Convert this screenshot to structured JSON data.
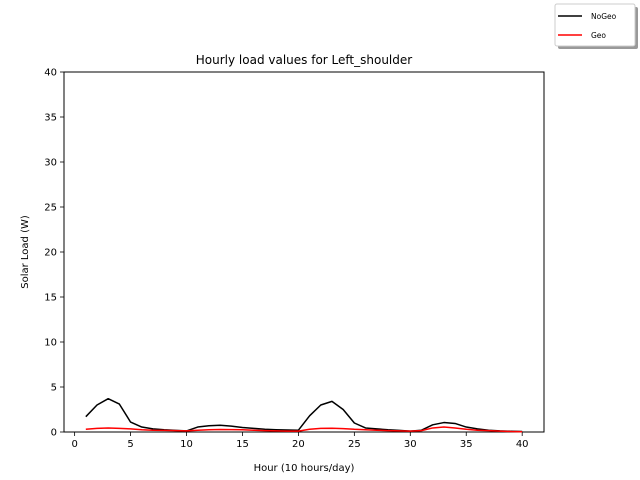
{
  "chart_data": {
    "type": "line",
    "title": "Hourly load values for Left_shoulder",
    "xlabel": "Hour (10 hours/day)",
    "ylabel": "Solar Load (W)",
    "xlim": [
      -0.95,
      41.95
    ],
    "ylim": [
      0,
      40
    ],
    "xticks": [
      0,
      5,
      10,
      15,
      20,
      25,
      30,
      35,
      40
    ],
    "yticks": [
      0,
      5,
      10,
      15,
      20,
      25,
      30,
      35,
      40
    ],
    "grid": false,
    "legend_position": "upper-right-outside",
    "x": [
      1,
      2,
      3,
      4,
      5,
      6,
      7,
      8,
      9,
      10,
      11,
      12,
      13,
      14,
      15,
      16,
      17,
      18,
      19,
      20,
      21,
      22,
      23,
      24,
      25,
      26,
      27,
      28,
      29,
      30,
      31,
      32,
      33,
      34,
      35,
      36,
      37,
      38,
      39,
      40
    ],
    "series": [
      {
        "name": "NoGeo",
        "color": "#000000",
        "values": [
          1.7,
          3.0,
          3.7,
          3.1,
          1.1,
          0.55,
          0.35,
          0.25,
          0.18,
          0.12,
          0.55,
          0.7,
          0.75,
          0.65,
          0.5,
          0.4,
          0.3,
          0.25,
          0.22,
          0.2,
          1.8,
          3.0,
          3.4,
          2.5,
          1.0,
          0.45,
          0.35,
          0.25,
          0.18,
          0.1,
          0.2,
          0.8,
          1.05,
          0.95,
          0.55,
          0.35,
          0.2,
          0.12,
          0.08,
          0.05
        ]
      },
      {
        "name": "Geo",
        "color": "#ff0000",
        "values": [
          0.3,
          0.4,
          0.45,
          0.4,
          0.35,
          0.25,
          0.2,
          0.18,
          0.15,
          0.12,
          0.2,
          0.25,
          0.28,
          0.27,
          0.25,
          0.2,
          0.15,
          0.12,
          0.1,
          0.1,
          0.3,
          0.4,
          0.42,
          0.38,
          0.3,
          0.25,
          0.2,
          0.15,
          0.12,
          0.1,
          0.15,
          0.45,
          0.55,
          0.45,
          0.3,
          0.2,
          0.15,
          0.1,
          0.05,
          0.03
        ]
      }
    ]
  }
}
